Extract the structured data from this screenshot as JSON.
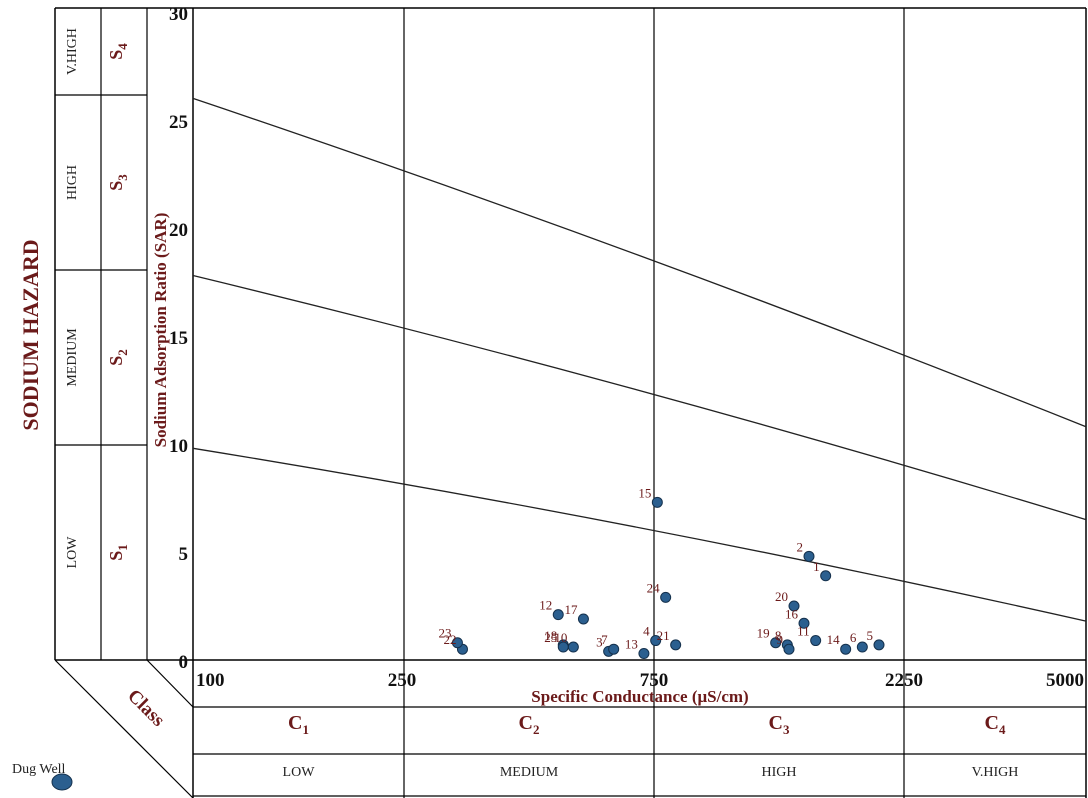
{
  "chart_data": {
    "type": "scatter",
    "title": "",
    "xlabel": "Specific Conductance (μS/cm)",
    "ylabel": "Sodium Adsorption Ratio (SAR)",
    "left_heading": "SODIUM HAZARD",
    "class_label": "Class",
    "x_ticks": [
      "100",
      "250",
      "750",
      "2250",
      "5000"
    ],
    "y_ticks": [
      "0",
      "5",
      "10",
      "15",
      "20",
      "25",
      "30"
    ],
    "ylim": [
      0,
      30
    ],
    "x_scale": "piecewise (classification breaks 100, 250, 750, 2250, 5000)",
    "sodium_classes": [
      {
        "label": "LOW",
        "code": "S",
        "sub": "1"
      },
      {
        "label": "MEDIUM",
        "code": "S",
        "sub": "2"
      },
      {
        "label": "HIGH",
        "code": "S",
        "sub": "3"
      },
      {
        "label": "V.HIGH",
        "code": "S",
        "sub": "4"
      }
    ],
    "salinity_classes": [
      {
        "code": "C",
        "sub": "1",
        "label": "LOW"
      },
      {
        "code": "C",
        "sub": "2",
        "label": "MEDIUM"
      },
      {
        "code": "C",
        "sub": "3",
        "label": "HIGH"
      },
      {
        "code": "C",
        "sub": "4",
        "label": "V.HIGH"
      }
    ],
    "hazard_lines": [
      {
        "start": [
          100,
          9.8
        ],
        "end": [
          5000,
          1.8
        ]
      },
      {
        "start": [
          100,
          17.8
        ],
        "end": [
          5000,
          6.5
        ]
      },
      {
        "start": [
          100,
          26
        ],
        "end": [
          5000,
          10.8
        ]
      }
    ],
    "legend": {
      "label": "Dug Well",
      "color": "#2b5f8f"
    },
    "colors": {
      "marker": "#2b5f8f",
      "marker_edge": "#15314d",
      "text": "#6b1a1a",
      "grid": "#000000"
    },
    "series": [
      {
        "points": [
          {
            "label": "1",
            "x": 1780,
            "y": 3.9
          },
          {
            "label": "2",
            "x": 1680,
            "y": 4.8
          },
          {
            "label": "3",
            "x": 660,
            "y": 0.4
          },
          {
            "label": "4",
            "x": 760,
            "y": 0.9
          },
          {
            "label": "5",
            "x": 2100,
            "y": 0.7
          },
          {
            "label": "6",
            "x": 2000,
            "y": 0.6
          },
          {
            "label": "7",
            "x": 670,
            "y": 0.5
          },
          {
            "label": "8",
            "x": 1550,
            "y": 0.7
          },
          {
            "label": "9",
            "x": 1560,
            "y": 0.5
          },
          {
            "label": "10",
            "x": 590,
            "y": 0.6
          },
          {
            "label": "11",
            "x": 1720,
            "y": 0.9
          },
          {
            "label": "12",
            "x": 560,
            "y": 2.1
          },
          {
            "label": "13",
            "x": 730,
            "y": 0.3
          },
          {
            "label": "14",
            "x": 1900,
            "y": 0.5
          },
          {
            "label": "15",
            "x": 770,
            "y": 7.3
          },
          {
            "label": "16",
            "x": 1650,
            "y": 1.7
          },
          {
            "label": "17",
            "x": 610,
            "y": 1.9
          },
          {
            "label": "18",
            "x": 570,
            "y": 0.7
          },
          {
            "label": "19",
            "x": 1480,
            "y": 0.8
          },
          {
            "label": "20",
            "x": 1590,
            "y": 2.5
          },
          {
            "label": "21",
            "x": 880,
            "y": 0.7
          },
          {
            "label": "22",
            "x": 370,
            "y": 0.5
          },
          {
            "label": "23",
            "x": 360,
            "y": 0.8
          },
          {
            "label": "24",
            "x": 820,
            "y": 2.9
          },
          {
            "label": "25",
            "x": 570,
            "y": 0.6
          }
        ]
      }
    ]
  }
}
